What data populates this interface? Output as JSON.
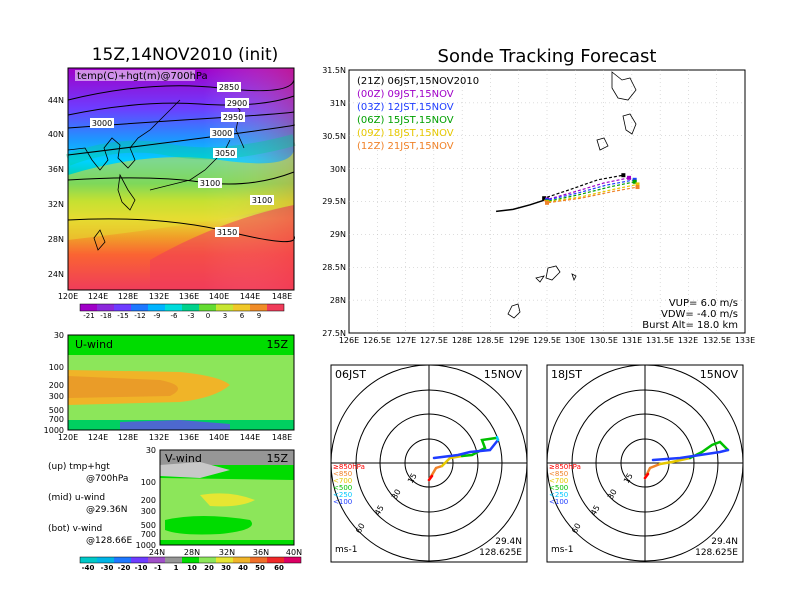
{
  "left": {
    "title": "15Z,14NOV2010 (init)",
    "map": {
      "panel_label": "temp(C)+hgt(m)@700hPa",
      "lat_labels": [
        "44N",
        "40N",
        "36N",
        "32N",
        "28N",
        "24N"
      ],
      "lon_labels": [
        "120E",
        "124E",
        "128E",
        "132E",
        "136E",
        "140E",
        "144E",
        "148E"
      ],
      "contour_labels": [
        "2850",
        "2900",
        "2950",
        "3000",
        "3050",
        "3100",
        "3100",
        "3150",
        "3000"
      ]
    },
    "temp_colorbar": [
      "-21",
      "-18",
      "-15",
      "-12",
      "-9",
      "-6",
      "-3",
      "0",
      "3",
      "6",
      "9"
    ],
    "uwind": {
      "label": "U-wind",
      "time": "15Z",
      "p_labels": [
        "30",
        "100",
        "200",
        "300",
        "500",
        "700",
        "1000"
      ],
      "lon_labels": [
        "120E",
        "124E",
        "128E",
        "132E",
        "136E",
        "140E",
        "144E",
        "148E"
      ]
    },
    "vwind": {
      "label": "V-wind",
      "time": "15Z",
      "p_labels": [
        "30",
        "100",
        "200",
        "300",
        "500",
        "700",
        "1000"
      ],
      "lat_labels": [
        "24N",
        "28N",
        "32N",
        "36N",
        "40N"
      ]
    },
    "wind_colorbar": [
      "-40",
      "-30",
      "-20",
      "-10",
      "-1",
      "1",
      "10",
      "20",
      "30",
      "40",
      "50",
      "60"
    ],
    "notes": [
      {
        "a": "(up) tmp+hgt",
        "b": "@700hPa"
      },
      {
        "a": "(mid) u-wind",
        "b": "@29.36N"
      },
      {
        "a": "(bot) v-wind",
        "b": "@128.66E"
      }
    ]
  },
  "right": {
    "title": "Sonde Tracking Forecast",
    "lat_labels": [
      "31.5N",
      "31N",
      "30.5N",
      "30N",
      "29.5N",
      "29N",
      "28.5N",
      "28N",
      "27.5N"
    ],
    "lon_labels": [
      "126E",
      "126.5E",
      "127E",
      "127.5E",
      "128E",
      "128.5E",
      "129E",
      "129.5E",
      "130E",
      "130.5E",
      "131E",
      "131.5E",
      "132E",
      "132.5E",
      "133E"
    ],
    "legend": [
      {
        "text": "(21Z) 06JST,15NOV2010",
        "color": "#000000"
      },
      {
        "text": "(00Z) 09JST,15NOV",
        "color": "#a000c8"
      },
      {
        "text": "(03Z) 12JST,15NOV",
        "color": "#1e3cff"
      },
      {
        "text": "(06Z) 15JST,15NOV",
        "color": "#00a000"
      },
      {
        "text": "(09Z) 18JST,15NOV",
        "color": "#e6c800"
      },
      {
        "text": "(12Z) 21JST,15NOV",
        "color": "#f08228"
      }
    ],
    "params": [
      "VUP= 6.0 m/s",
      "VDW= -4.0 m/s",
      "Burst Alt= 18.0 km"
    ],
    "hodographs": [
      {
        "time": "06JST",
        "date": "15NOV",
        "p_labels": [
          "≥850hPa",
          "<850",
          "<700",
          "<500",
          "<250",
          "<100"
        ],
        "ring_labels": [
          "15",
          "30",
          "45",
          "60"
        ],
        "unit": "ms-1",
        "lat": "29.4N",
        "lon": "128.625E"
      },
      {
        "time": "18JST",
        "date": "15NOV",
        "p_labels": [
          "≥850hPa",
          "<850",
          "<700",
          "<500",
          "<250",
          "<100"
        ],
        "ring_labels": [
          "15",
          "30",
          "45",
          "60"
        ],
        "unit": "ms-1",
        "lat": "29.4N",
        "lon": "128.625E"
      }
    ]
  },
  "chart_data": {
    "type": "line",
    "title": "Sonde Tracking Forecast",
    "xlim": [
      126,
      133
    ],
    "ylim": [
      27.5,
      31.5
    ],
    "series": [
      {
        "name": "(21Z) 06JST,15NOV2010",
        "color": "#000000",
        "x": [
          129.45,
          129.9,
          130.4,
          130.85
        ],
        "y": [
          29.55,
          29.68,
          29.83,
          29.9
        ]
      },
      {
        "name": "(00Z) 09JST,15NOV",
        "color": "#a000c8",
        "x": [
          129.5,
          130.0,
          130.5,
          130.95
        ],
        "y": [
          29.53,
          29.65,
          29.78,
          29.86
        ]
      },
      {
        "name": "(03Z) 12JST,15NOV",
        "color": "#1e3cff",
        "x": [
          129.5,
          130.05,
          130.55,
          131.05
        ],
        "y": [
          29.52,
          29.63,
          29.75,
          29.83
        ]
      },
      {
        "name": "(06Z) 15JST,15NOV",
        "color": "#00a000",
        "x": [
          129.5,
          130.05,
          130.6,
          131.05
        ],
        "y": [
          29.5,
          29.6,
          29.72,
          29.8
        ]
      },
      {
        "name": "(09Z) 18JST,15NOV",
        "color": "#e6c800",
        "x": [
          129.5,
          130.1,
          130.65,
          131.1
        ],
        "y": [
          29.49,
          29.57,
          29.68,
          29.76
        ]
      },
      {
        "name": "(12Z) 21JST,15NOV",
        "color": "#f08228",
        "x": [
          129.5,
          130.1,
          130.65,
          131.1
        ],
        "y": [
          29.48,
          29.55,
          29.65,
          29.72
        ]
      }
    ],
    "common_ascent": {
      "x": [
        128.6,
        128.9,
        129.2,
        129.45
      ],
      "y": [
        29.35,
        29.38,
        29.45,
        29.52
      ]
    }
  }
}
